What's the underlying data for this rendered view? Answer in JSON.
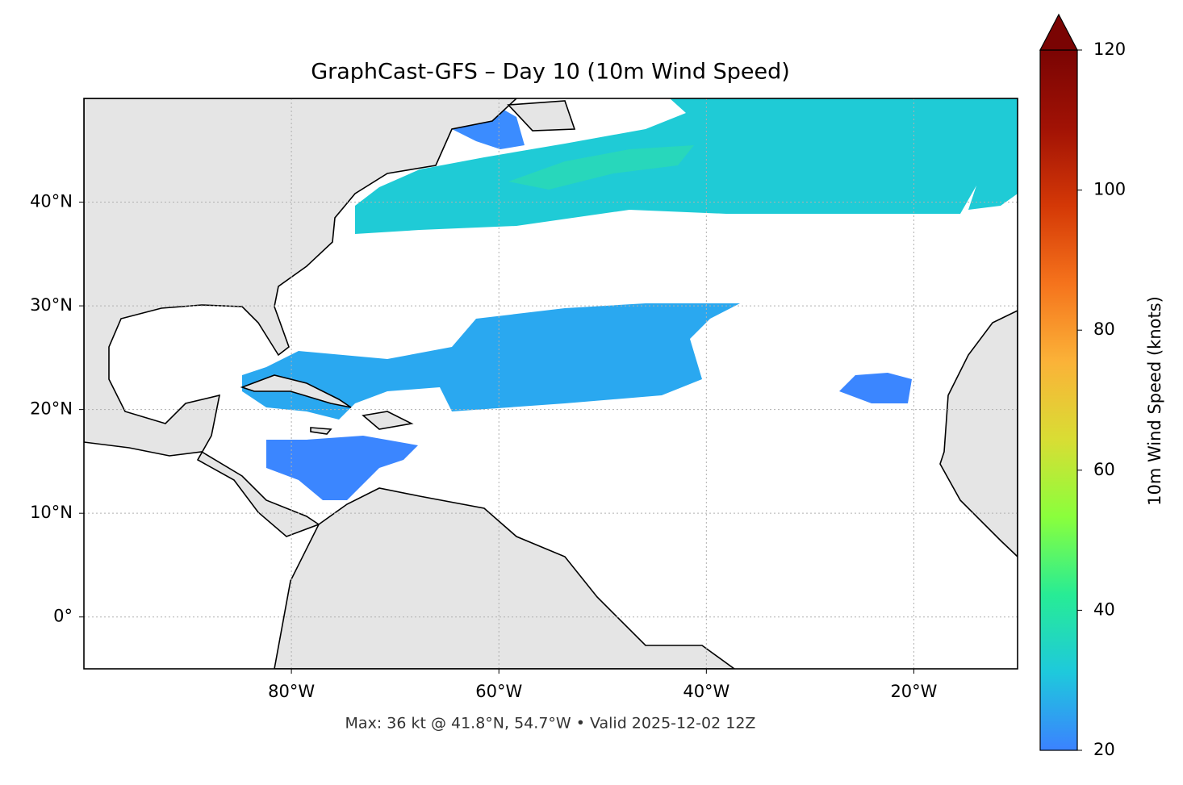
{
  "chart_data": {
    "type": "map",
    "title": "GraphCast-GFS – Day 10 (10m Wind Speed)",
    "annotation": "Max: 36 kt @ 41.8°N, 54.7°W • Valid 2025-12-02 12Z",
    "xlim": [
      -100,
      -10
    ],
    "ylim": [
      -5,
      50
    ],
    "xticks": [
      {
        "value": -80,
        "label": "80°W"
      },
      {
        "value": -60,
        "label": "60°W"
      },
      {
        "value": -40,
        "label": "40°W"
      },
      {
        "value": -20,
        "label": "20°W"
      }
    ],
    "yticks": [
      {
        "value": 0,
        "label": "0°"
      },
      {
        "value": 10,
        "label": "10°N"
      },
      {
        "value": 20,
        "label": "20°N"
      },
      {
        "value": 30,
        "label": "30°N"
      },
      {
        "value": 40,
        "label": "40°N"
      }
    ],
    "grid": true,
    "colorbar_label": "10m Wind Speed (knots)",
    "clim": [
      20,
      120
    ],
    "cticks": [
      20,
      40,
      60,
      80,
      100,
      120
    ],
    "colormap": [
      "#3b82ff",
      "#1ec9dc",
      "#27ec95",
      "#8aff3c",
      "#d9dd34",
      "#fbb238",
      "#f5731c",
      "#d43806",
      "#a11205",
      "#7a0403"
    ]
  }
}
